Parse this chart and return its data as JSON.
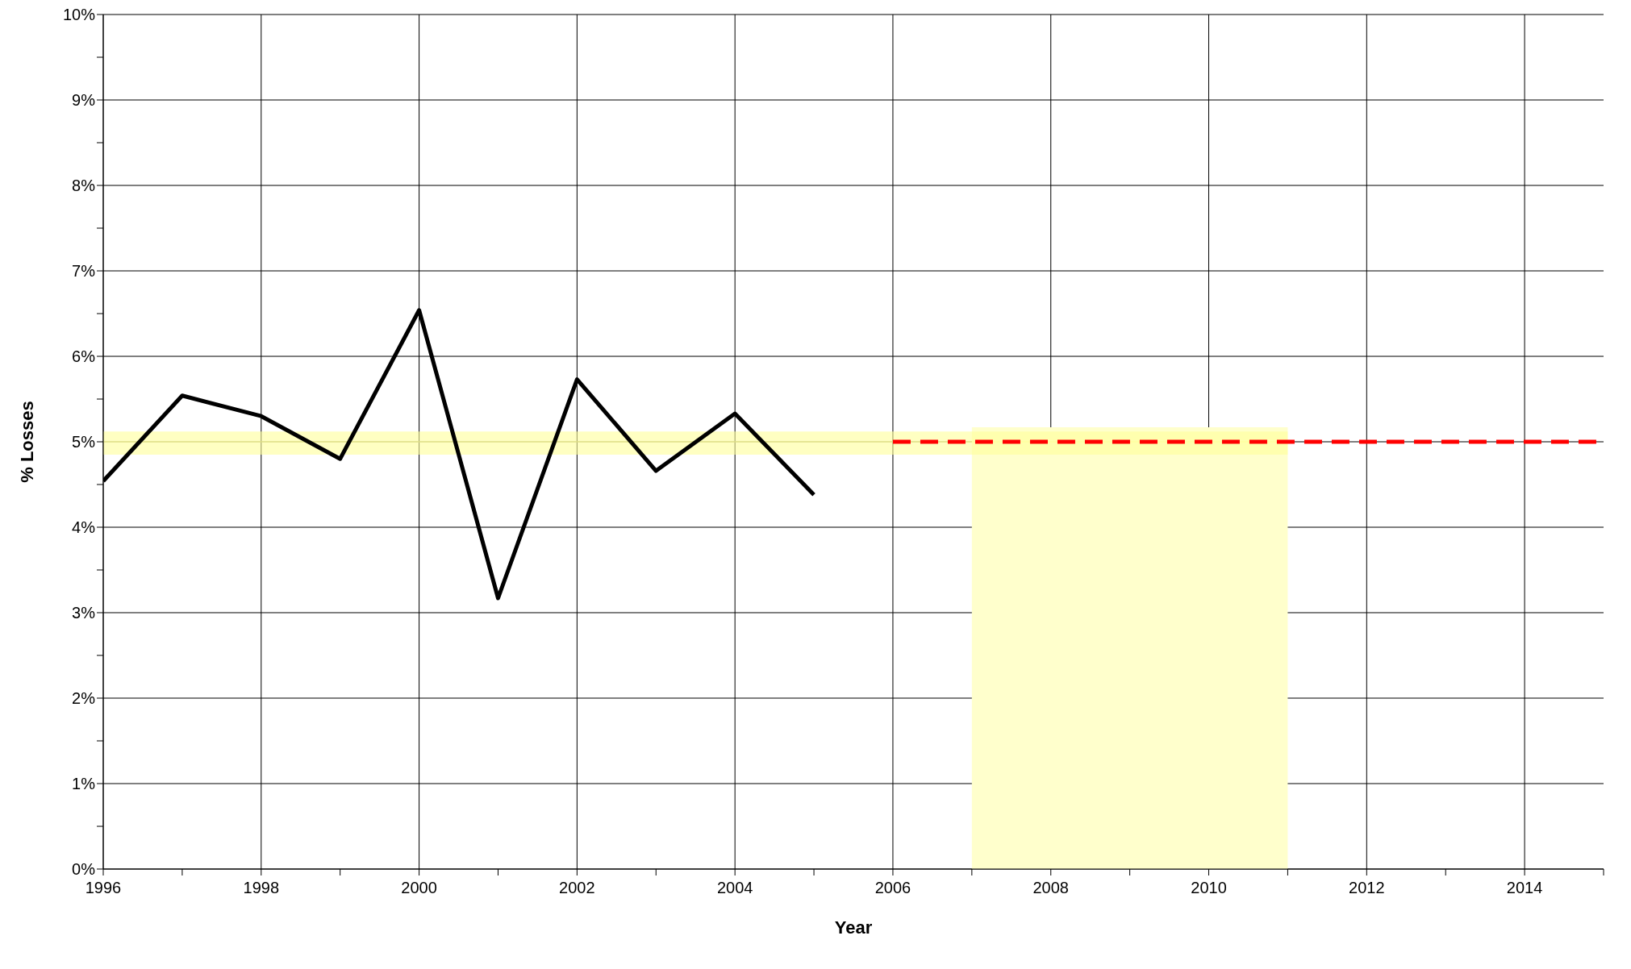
{
  "chart_data": {
    "type": "line",
    "xlabel": "Year",
    "ylabel": "% Losses",
    "xlim": [
      1996,
      2015
    ],
    "ylim": [
      0,
      10
    ],
    "xticks": [
      1996,
      {
        "value": 1997,
        "label": null
      },
      1998,
      {
        "value": 1999,
        "label": null
      },
      2000,
      {
        "value": 2001,
        "label": null
      },
      2002,
      {
        "value": 2003,
        "label": null
      },
      2004,
      {
        "value": 2005,
        "label": null
      },
      2006,
      {
        "value": 2007,
        "label": null
      },
      2008,
      {
        "value": 2009,
        "label": null
      },
      2010,
      {
        "value": 2011,
        "label": null
      },
      2012,
      {
        "value": 2013,
        "label": null
      },
      2014,
      {
        "value": 2015,
        "label": null
      }
    ],
    "yticks": [
      {
        "value": 0,
        "label": "0%"
      },
      {
        "value": 0.5,
        "label": null
      },
      {
        "value": 1,
        "label": "1%"
      },
      {
        "value": 1.5,
        "label": null
      },
      {
        "value": 2,
        "label": "2%"
      },
      {
        "value": 2.5,
        "label": null
      },
      {
        "value": 3,
        "label": "3%"
      },
      {
        "value": 3.5,
        "label": null
      },
      {
        "value": 4,
        "label": "4%"
      },
      {
        "value": 4.5,
        "label": null
      },
      {
        "value": 5,
        "label": "5%"
      },
      {
        "value": 5.5,
        "label": null
      },
      {
        "value": 6,
        "label": "6%"
      },
      {
        "value": 6.5,
        "label": null
      },
      {
        "value": 7,
        "label": "7%"
      },
      {
        "value": 7.5,
        "label": null
      },
      {
        "value": 8,
        "label": "8%"
      },
      {
        "value": 8.5,
        "label": null
      },
      {
        "value": 9,
        "label": "9%"
      },
      {
        "value": 9.5,
        "label": null
      },
      {
        "value": 10,
        "label": "10%"
      }
    ],
    "grid": true,
    "legend": false,
    "marker": "none",
    "series": [
      {
        "type": "area",
        "color": "#ffffcc",
        "x": [
          2007,
          2011
        ],
        "values": [
          5.17,
          5.17
        ]
      },
      {
        "type": "line",
        "color": "#ffff99",
        "x": [
          1996,
          2011
        ],
        "values": [
          5,
          5
        ],
        "lower": [
          4.85,
          4.85
        ],
        "upper": [
          5.12,
          5.12
        ]
      },
      {
        "color": "#000000",
        "x": [
          1996,
          1997,
          1998,
          1999,
          2000,
          2001,
          2002,
          2003,
          2004,
          2005
        ],
        "values": [
          4.54,
          5.54,
          5.3,
          4.8,
          6.54,
          3.17,
          5.73,
          4.66,
          5.33,
          4.38
        ],
        "line_style": "solid"
      },
      {
        "type": "line",
        "color": "#ff0000",
        "x": [
          2006,
          2015
        ],
        "values": [
          5,
          5
        ],
        "line_style": "dashed"
      }
    ]
  }
}
